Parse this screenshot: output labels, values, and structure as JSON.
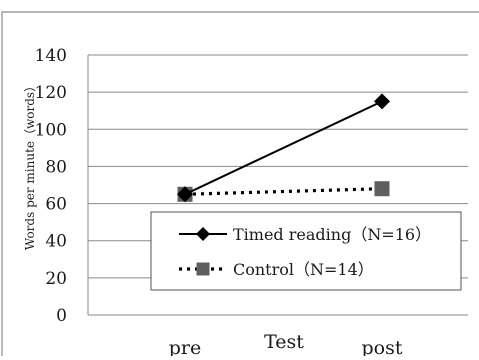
{
  "chart_data": {
    "type": "line",
    "title": "",
    "xlabel": "Test",
    "ylabel": "Words per minute（words）",
    "categories": [
      "pre",
      "post"
    ],
    "ylim": [
      0,
      140
    ],
    "yticks": [
      0,
      20,
      40,
      60,
      80,
      100,
      120,
      140
    ],
    "grid": true,
    "legend_position": "bottom-right",
    "series": [
      {
        "name": "Timed reading（N=16）",
        "values": [
          65,
          115
        ],
        "color": "#000000",
        "line_style": "solid",
        "marker": "diamond"
      },
      {
        "name": "Control（N=14）",
        "values": [
          65,
          68
        ],
        "color": "#000000",
        "marker_color": "#5f5f5f",
        "line_style": "dotted",
        "marker": "square"
      }
    ]
  }
}
